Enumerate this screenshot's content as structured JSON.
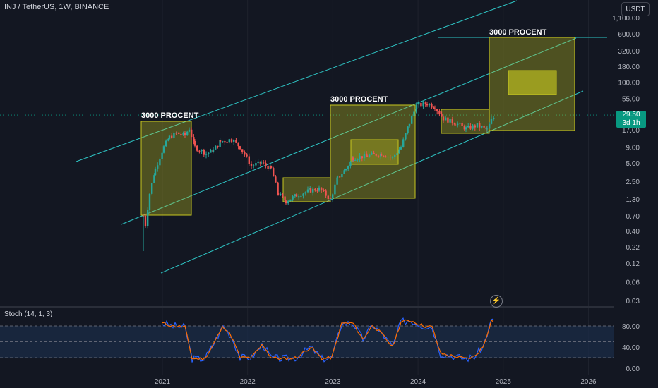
{
  "header": {
    "symbol": "INJ / TetherUS, 1W, BINANCE",
    "currency": "USDT"
  },
  "indicator": {
    "label": "Stoch (14, 1, 3)"
  },
  "price_badge": {
    "price": "29.50",
    "countdown": "3d 1h"
  },
  "colors": {
    "background": "#131722",
    "up": "#26a69a",
    "down": "#ef5350",
    "channel": "#2ec4c4",
    "box": "#c8c820",
    "k_line": "#2962ff",
    "d_line": "#ff6d00"
  },
  "icons": {
    "alert": "lightning-icon"
  },
  "chart_data": [
    {
      "type": "candlestick",
      "scale": "log",
      "y_ticks": [
        "1,100.00",
        "600.00",
        "320.00",
        "180.00",
        "100.00",
        "55.00",
        "29.50",
        "17.00",
        "9.00",
        "5.00",
        "2.50",
        "1.30",
        "0.70",
        "0.40",
        "0.22",
        "0.12",
        "0.06",
        "0.03"
      ],
      "x_ticks": [
        "2021",
        "2022",
        "2023",
        "2024",
        "2025",
        "2026"
      ],
      "last_price": 29.5,
      "annotations": [
        {
          "text": "3000 PROCENT",
          "x": "2021"
        },
        {
          "text": "3000 PROCENT",
          "x": "2023"
        },
        {
          "text": "3000 PROCENT",
          "x": "2025"
        }
      ]
    },
    {
      "type": "line",
      "name": "Stoch (14, 1, 3)",
      "y_ticks": [
        "80.00",
        "40.00",
        "0.00"
      ],
      "ylim": [
        0,
        100
      ]
    }
  ]
}
